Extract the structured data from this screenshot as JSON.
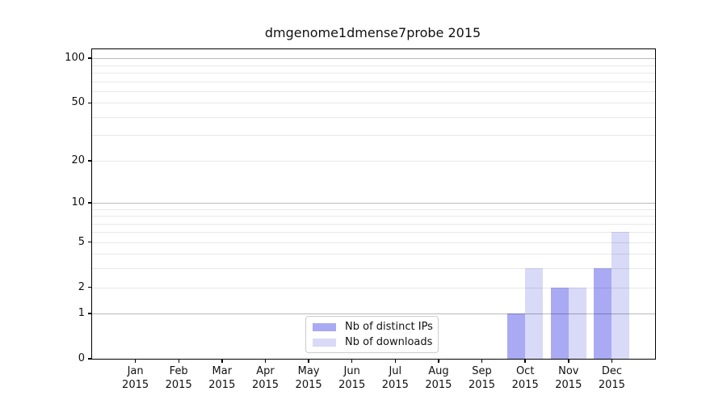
{
  "chart_data": {
    "type": "bar",
    "title": "dmgenome1dmense7probe 2015",
    "categories": [
      "Jan",
      "Feb",
      "Mar",
      "Apr",
      "May",
      "Jun",
      "Jul",
      "Aug",
      "Sep",
      "Oct",
      "Nov",
      "Dec"
    ],
    "year_label": "2015",
    "series": [
      {
        "name": "Nb of distinct IPs",
        "color": "#a9a9f4",
        "values": [
          0,
          0,
          0,
          0,
          0,
          0,
          0,
          0,
          0,
          1,
          2,
          3
        ]
      },
      {
        "name": "Nb of downloads",
        "color": "#d9d9f8",
        "values": [
          0,
          0,
          0,
          0,
          0,
          0,
          0,
          0,
          0,
          3,
          2,
          6
        ]
      }
    ],
    "xlabel": "",
    "ylabel": "",
    "yscale": "log10(1+v)",
    "ylim": [
      0,
      115
    ],
    "yticks": [
      0,
      1,
      2,
      5,
      10,
      20,
      50,
      100
    ],
    "major_gridlines": [
      1,
      10,
      100
    ],
    "minor_gridlines": [
      2,
      3,
      4,
      5,
      6,
      7,
      8,
      9,
      20,
      30,
      40,
      50,
      60,
      70,
      80,
      90
    ],
    "grid": "horizontal",
    "legend_position": "lower center"
  }
}
